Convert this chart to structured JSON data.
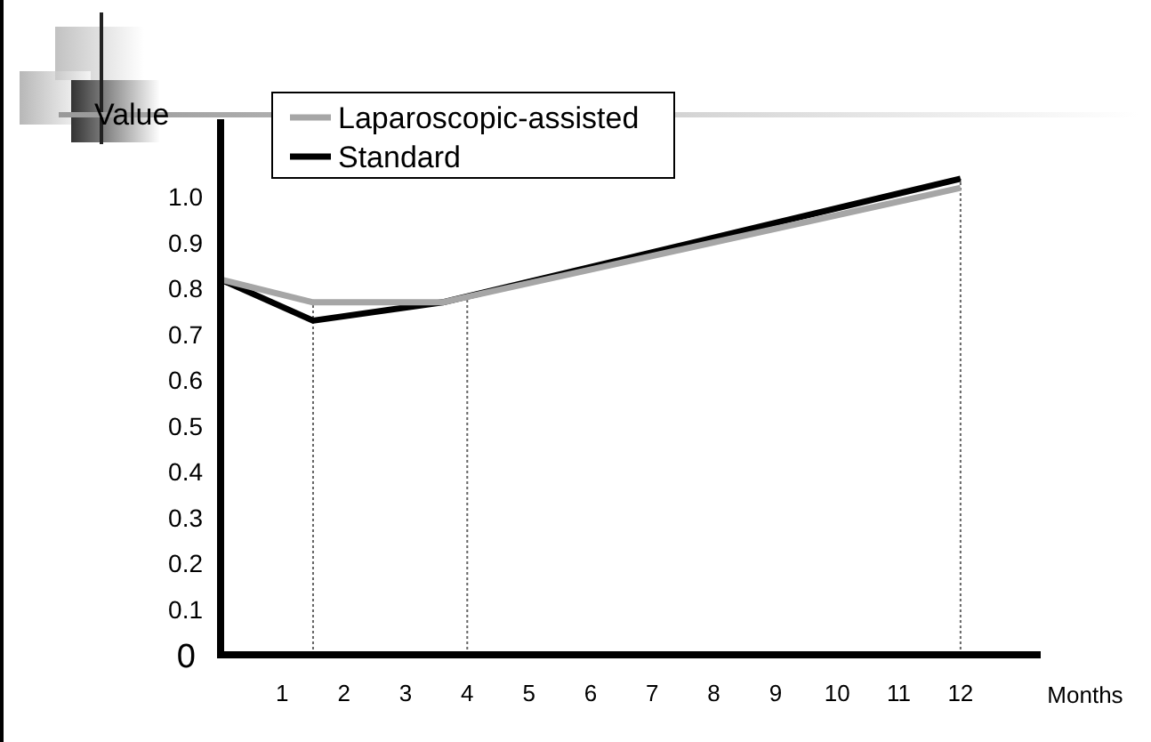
{
  "chart_data": {
    "type": "line",
    "xlabel": "Months",
    "ylabel": "Value",
    "x": [
      0,
      1.5,
      3.6,
      12
    ],
    "series": [
      {
        "name": "Laparoscopic-assisted",
        "color": "#a6a6a6",
        "values": [
          0.82,
          0.77,
          0.77,
          1.02
        ]
      },
      {
        "name": "Standard",
        "color": "#000000",
        "values": [
          0.82,
          0.73,
          0.77,
          1.04
        ]
      }
    ],
    "xlim": [
      0,
      13.3
    ],
    "xticks": [
      1,
      2,
      3,
      4,
      5,
      6,
      7,
      8,
      9,
      10,
      11,
      12
    ],
    "ylim": [
      0,
      1.17
    ],
    "yticks": [
      0,
      0.1,
      0.2,
      0.3,
      0.4,
      0.5,
      0.6,
      0.7,
      0.8,
      0.9,
      {
        "value": 1,
        "label": "1.0"
      }
    ],
    "ref_lines": [
      {
        "axis": "x",
        "value": 1.5,
        "line_style": "dotted"
      },
      {
        "axis": "x",
        "value": 4,
        "line_style": "dotted"
      },
      {
        "axis": "x",
        "value": 12,
        "line_style": "dotted"
      }
    ],
    "grid": false,
    "legend": "top left",
    "marker": "none",
    "line_style": "solid"
  }
}
